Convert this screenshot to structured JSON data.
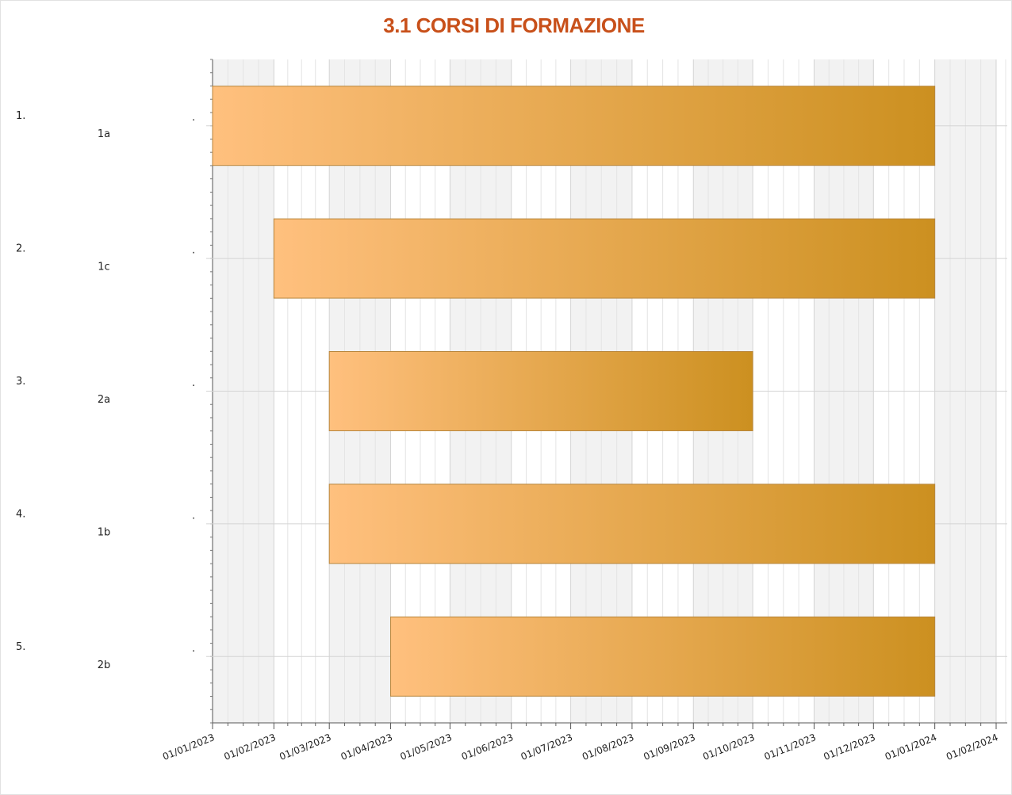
{
  "chart_data": {
    "type": "gantt",
    "title": "3.1 CORSI DI FORMAZIONE",
    "tasks": [
      {
        "number": "1.",
        "name": "1a",
        "note": ".",
        "start": "2023-01-01",
        "end": "2024-01-01"
      },
      {
        "number": "2.",
        "name": "1c",
        "note": ".",
        "start": "2023-02-01",
        "end": "2024-01-01"
      },
      {
        "number": "3.",
        "name": "2a",
        "note": ".",
        "start": "2023-03-01",
        "end": "2023-10-01"
      },
      {
        "number": "4.",
        "name": "1b",
        "note": ".",
        "start": "2023-03-01",
        "end": "2024-01-01"
      },
      {
        "number": "5.",
        "name": "2b",
        "note": ".",
        "start": "2023-04-01",
        "end": "2024-01-01"
      }
    ],
    "colors": [
      "#ffc07e",
      "#cc9020"
    ],
    "xlim": [
      "2023-01-01",
      "2024-02-01"
    ],
    "xticks": [
      {
        "value": "2023-01-01",
        "label": "01/01/2023"
      },
      {
        "value": "2023-02-01",
        "label": "01/02/2023"
      },
      {
        "value": "2023-03-01",
        "label": "01/03/2023"
      },
      {
        "value": "2023-04-01",
        "label": "01/04/2023"
      },
      {
        "value": "2023-05-01",
        "label": "01/05/2023"
      },
      {
        "value": "2023-06-01",
        "label": "01/06/2023"
      },
      {
        "value": "2023-07-01",
        "label": "01/07/2023"
      },
      {
        "value": "2023-08-01",
        "label": "01/08/2023"
      },
      {
        "value": "2023-09-01",
        "label": "01/09/2023"
      },
      {
        "value": "2023-10-01",
        "label": "01/10/2023"
      },
      {
        "value": "2023-11-01",
        "label": "01/11/2023"
      },
      {
        "value": "2023-12-01",
        "label": "01/12/2023"
      },
      {
        "value": "2024-01-01",
        "label": "01/01/2024"
      },
      {
        "value": "2024-02-01",
        "label": "01/02/2024"
      }
    ],
    "grid": true
  }
}
